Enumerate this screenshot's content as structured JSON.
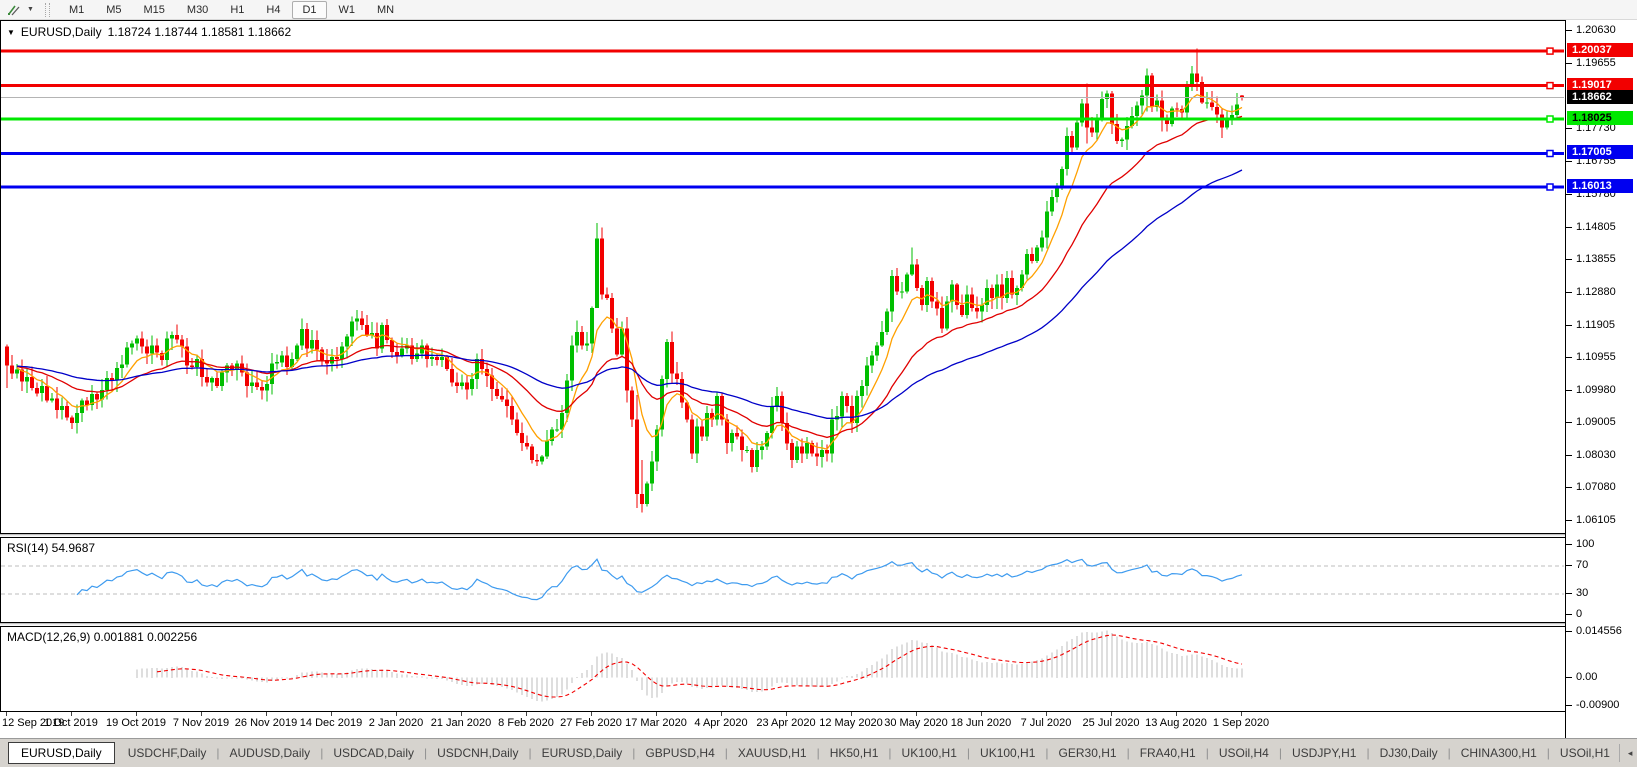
{
  "toolbar": {
    "dropdown_glyph": "▼",
    "timeframes": [
      {
        "label": "M1",
        "active": false
      },
      {
        "label": "M5",
        "active": false
      },
      {
        "label": "M15",
        "active": false
      },
      {
        "label": "M30",
        "active": false
      },
      {
        "label": "H1",
        "active": false
      },
      {
        "label": "H4",
        "active": false
      },
      {
        "label": "D1",
        "active": true
      },
      {
        "label": "W1",
        "active": false
      },
      {
        "label": "MN",
        "active": false
      }
    ]
  },
  "chart": {
    "title": {
      "dropdown_glyph": "▼",
      "symbol": "EURUSD,Daily",
      "ohlc": "1.18724 1.18744 1.18581 1.18662"
    }
  },
  "chart_data": {
    "type": "candlestick",
    "symbol": "EURUSD",
    "timeframe": "Daily",
    "title": "EURUSD,Daily",
    "ohlc_readout": {
      "open": 1.18724,
      "high": 1.18744,
      "low": 1.18581,
      "close": 1.18662
    },
    "price_range": {
      "top": 1.2093,
      "bottom": 1.0576
    },
    "y_ticks": [
      "1.20630",
      "1.19655",
      "1.17730",
      "1.16755",
      "1.15780",
      "1.14805",
      "1.13855",
      "1.12880",
      "1.11905",
      "1.10955",
      "1.09980",
      "1.09005",
      "1.08030",
      "1.07080",
      "1.06105"
    ],
    "x_labels": [
      "12 Sep 2019",
      "1 Oct 2019",
      "19 Oct 2019",
      "7 Nov 2019",
      "26 Nov 2019",
      "14 Dec 2019",
      "2 Jan 2020",
      "21 Jan 2020",
      "8 Feb 2020",
      "27 Feb 2020",
      "17 Mar 2020",
      "4 Apr 2020",
      "23 Apr 2020",
      "12 May 2020",
      "30 May 2020",
      "18 Jun 2020",
      "7 Jul 2020",
      "25 Jul 2020",
      "13 Aug 2020",
      "1 Sep 2020"
    ],
    "candles_per_label": 13,
    "first_open": 1.1128,
    "closes": [
      1.1072,
      1.1048,
      1.106,
      1.1025,
      1.1038,
      1.1005,
      1.099,
      1.1012,
      1.0968,
      1.0975,
      1.094,
      1.0952,
      1.0918,
      1.0902,
      1.0932,
      1.0968,
      1.0955,
      1.0988,
      1.0972,
      1.1,
      1.1035,
      1.1028,
      1.1065,
      1.1075,
      1.1125,
      1.1138,
      1.1152,
      1.1128,
      1.1108,
      1.1132,
      1.111,
      1.1088,
      1.1152,
      1.1162,
      1.115,
      1.1128,
      1.1072,
      1.1068,
      1.1092,
      1.1038,
      1.1022,
      1.1035,
      1.1012,
      1.1052,
      1.1072,
      1.106,
      1.1078,
      1.1052,
      1.1012,
      1.1022,
      1.1008,
      1.0998,
      1.1018,
      1.1078,
      1.1082,
      1.1102,
      1.1068,
      1.1092,
      1.1132,
      1.118,
      1.1122,
      1.1148,
      1.112,
      1.1088,
      1.1078,
      1.1098,
      1.1092,
      1.1128,
      1.1158,
      1.1202,
      1.1212,
      1.1192,
      1.1162,
      1.1168,
      1.1122,
      1.1192,
      1.1148,
      1.1112,
      1.1102,
      1.1122,
      1.1132,
      1.1092,
      1.1108,
      1.1132,
      1.1092,
      1.1098,
      1.1088,
      1.1098,
      1.1062,
      1.1022,
      1.1012,
      1.1022,
      1.1002,
      1.1032,
      1.1092,
      1.1062,
      1.1042,
      1.1002,
      1.0982,
      1.0972,
      1.0952,
      1.0912,
      1.0872,
      1.0842,
      1.0832,
      1.0792,
      1.0788,
      1.0802,
      1.0848,
      1.0882,
      1.0882,
      1.0932,
      1.1028,
      1.1132,
      1.1172,
      1.1132,
      1.1138,
      1.1242,
      1.1448,
      1.1282,
      1.1272,
      1.1182,
      1.1105,
      1.1182,
      1.0998,
      1.0912,
      1.0692,
      1.0662,
      1.0722,
      1.0788,
      1.0882,
      1.1032,
      1.1142,
      1.1048,
      1.1032,
      1.0962,
      1.0912,
      1.0812,
      1.0892,
      1.0862,
      1.0932,
      1.0912,
      1.0982,
      1.0912,
      1.0842,
      1.0872,
      1.0862,
      1.0822,
      1.0822,
      1.0772,
      1.0822,
      1.0832,
      1.0872,
      1.0952,
      1.0982,
      1.0902,
      1.0842,
      1.0792,
      1.0832,
      1.0812,
      1.0842,
      1.0812,
      1.0802,
      1.0822,
      1.0812,
      1.0912,
      1.0922,
      1.0982,
      1.0952,
      1.0902,
      1.0982,
      1.1012,
      1.1072,
      1.1102,
      1.1132,
      1.1172,
      1.1232,
      1.1337,
      1.1292,
      1.1292,
      1.1342,
      1.1372,
      1.1302,
      1.1252,
      1.1322,
      1.1262,
      1.1242,
      1.1182,
      1.1262,
      1.1312,
      1.1252,
      1.1222,
      1.1282,
      1.1242,
      1.1232,
      1.1252,
      1.1302,
      1.1272,
      1.1312,
      1.1272,
      1.1332,
      1.1282,
      1.1302,
      1.1342,
      1.1402,
      1.1382,
      1.1422,
      1.1452,
      1.1528,
      1.1572,
      1.1598,
      1.1655,
      1.1752,
      1.1718,
      1.1792,
      1.1848,
      1.1778,
      1.1762,
      1.1802,
      1.1862,
      1.1878,
      1.1788,
      1.1738,
      1.1742,
      1.1782,
      1.1812,
      1.1842,
      1.1872,
      1.1932,
      1.1838,
      1.1858,
      1.1798,
      1.1788,
      1.1834,
      1.1832,
      1.1822,
      1.1902,
      1.1938,
      1.1912,
      1.1852,
      1.1852,
      1.1838,
      1.1816,
      1.1778,
      1.1802,
      1.1814,
      1.1846,
      1.18662
    ],
    "wick_overrides": {
      "0": [
        1.1135,
        1.1005
      ],
      "118": [
        1.1495,
        1.1255
      ],
      "126": [
        1.0985,
        1.065
      ],
      "127": [
        1.0792,
        1.0636
      ],
      "181": [
        1.1422,
        1.1338
      ],
      "216": [
        1.1908,
        1.173
      ],
      "228": [
        1.1952,
        1.1825
      ],
      "238": [
        1.2011,
        1.1885
      ],
      "247": [
        1.18744,
        1.18581
      ]
    },
    "last_candle": {
      "open": 1.18724,
      "high": 1.18744,
      "low": 1.18581,
      "close": 1.18662
    },
    "moving_averages": [
      {
        "period": 8,
        "color": "#FFA000",
        "name": "fast-ma"
      },
      {
        "period": 25,
        "color": "#E00000",
        "name": "medium-ma"
      },
      {
        "period": 60,
        "color": "#0000C8",
        "name": "slow-ma"
      }
    ],
    "hlines": [
      {
        "price": 1.20037,
        "label": "1.20037",
        "color": "#F20000",
        "label_fg": "#FFFFFF"
      },
      {
        "price": 1.19017,
        "label": "1.19017",
        "color": "#F20000",
        "label_fg": "#FFFFFF"
      },
      {
        "price": 1.18025,
        "label": "1.18025",
        "color": "#00E800",
        "label_fg": "#000000"
      },
      {
        "price": 1.17005,
        "label": "1.17005",
        "color": "#0000F0",
        "label_fg": "#FFFFFF"
      },
      {
        "price": 1.16013,
        "label": "1.16013",
        "color": "#0000F0",
        "label_fg": "#FFFFFF"
      }
    ],
    "current_price": {
      "price": 1.18662,
      "label": "1.18662",
      "line_color": "#B4B4B4",
      "label_bg": "#000000",
      "label_fg": "#FFFFFF"
    },
    "candle_up_color": "#00BE00",
    "candle_down_color": "#F20000",
    "indicators": [
      {
        "name": "RSI",
        "label": "RSI(14) 54.9687",
        "period": 14,
        "value": 54.9687,
        "levels": [
          70,
          30
        ],
        "axis_ticks": [
          {
            "v": 100,
            "t": "100"
          },
          {
            "v": 70,
            "t": "70"
          },
          {
            "v": 30,
            "t": "30"
          },
          {
            "v": 0,
            "t": "0"
          }
        ],
        "line_color": "#3E9BEF",
        "level_color": "#BDBDBD"
      },
      {
        "name": "MACD",
        "label": "MACD(12,26,9) 0.001881 0.002256",
        "params": [
          12,
          26,
          9
        ],
        "main_value": 0.001881,
        "signal_value": 0.002256,
        "axis_ticks": [
          {
            "v": 0.014556,
            "t": "0.014556"
          },
          {
            "v": 0,
            "t": "0.00"
          },
          {
            "v": -0.009,
            "t": "-0.00900"
          }
        ],
        "range": [
          -0.009,
          0.014556
        ],
        "hist_color": "#BDBDBD",
        "signal_color": "#F20000"
      }
    ]
  },
  "tabs": {
    "scroll_left_glyph": "◂",
    "scroll_right_glyph": "▸",
    "items": [
      {
        "label": "EURUSD,Daily",
        "active": true
      },
      {
        "label": "USDCHF,Daily",
        "active": false
      },
      {
        "label": "AUDUSD,Daily",
        "active": false
      },
      {
        "label": "USDCAD,Daily",
        "active": false
      },
      {
        "label": "USDCNH,Daily",
        "active": false
      },
      {
        "label": "EURUSD,Daily",
        "active": false
      },
      {
        "label": "GBPUSD,H4",
        "active": false
      },
      {
        "label": "XAUUSD,H1",
        "active": false
      },
      {
        "label": "HK50,H1",
        "active": false
      },
      {
        "label": "UK100,H1",
        "active": false
      },
      {
        "label": "UK100,H1",
        "active": false
      },
      {
        "label": "GER30,H1",
        "active": false
      },
      {
        "label": "FRA40,H1",
        "active": false
      },
      {
        "label": "USOil,H4",
        "active": false
      },
      {
        "label": "USDJPY,H1",
        "active": false
      },
      {
        "label": "DJ30,Daily",
        "active": false
      },
      {
        "label": "CHINA300,H1",
        "active": false
      },
      {
        "label": "USOil,H1",
        "active": false
      }
    ]
  }
}
